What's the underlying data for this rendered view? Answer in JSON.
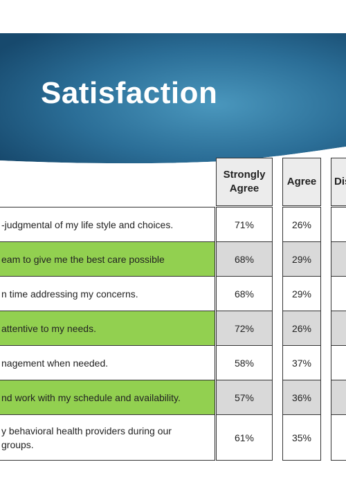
{
  "title": "Satisfaction",
  "colors": {
    "banner_dark": "#1d4f73",
    "banner_light": "#3f8cb3",
    "row_highlight": "#92d050",
    "value_shade": "#d9d9d9",
    "header_bg": "#ececec"
  },
  "columns": [
    {
      "label_line1": "Strongly",
      "label_line2": "Agree"
    },
    {
      "label_line1": "Agree",
      "label_line2": ""
    },
    {
      "label_line1": "Dis",
      "label_line2": ""
    }
  ],
  "rows": [
    {
      "statement": "-judgmental  of my life style and choices.",
      "strongly_agree": "71%",
      "agree": "26%"
    },
    {
      "statement": "eam to give me the best care possible",
      "strongly_agree": "68%",
      "agree": "29%"
    },
    {
      "statement": "n time addressing my concerns.",
      "strongly_agree": "68%",
      "agree": "29%"
    },
    {
      "statement": "attentive to my needs.",
      "strongly_agree": "72%",
      "agree": "26%"
    },
    {
      "statement": "nagement when needed.",
      "strongly_agree": "58%",
      "agree": "37%"
    },
    {
      "statement": "nd work with my schedule and availability.",
      "strongly_agree": "57%",
      "agree": "36%"
    },
    {
      "statement": "y behavioral health providers during our groups.",
      "statement_line1": "y behavioral health providers during our",
      "statement_line2": "groups.",
      "strongly_agree": "61%",
      "agree": "35%"
    }
  ]
}
